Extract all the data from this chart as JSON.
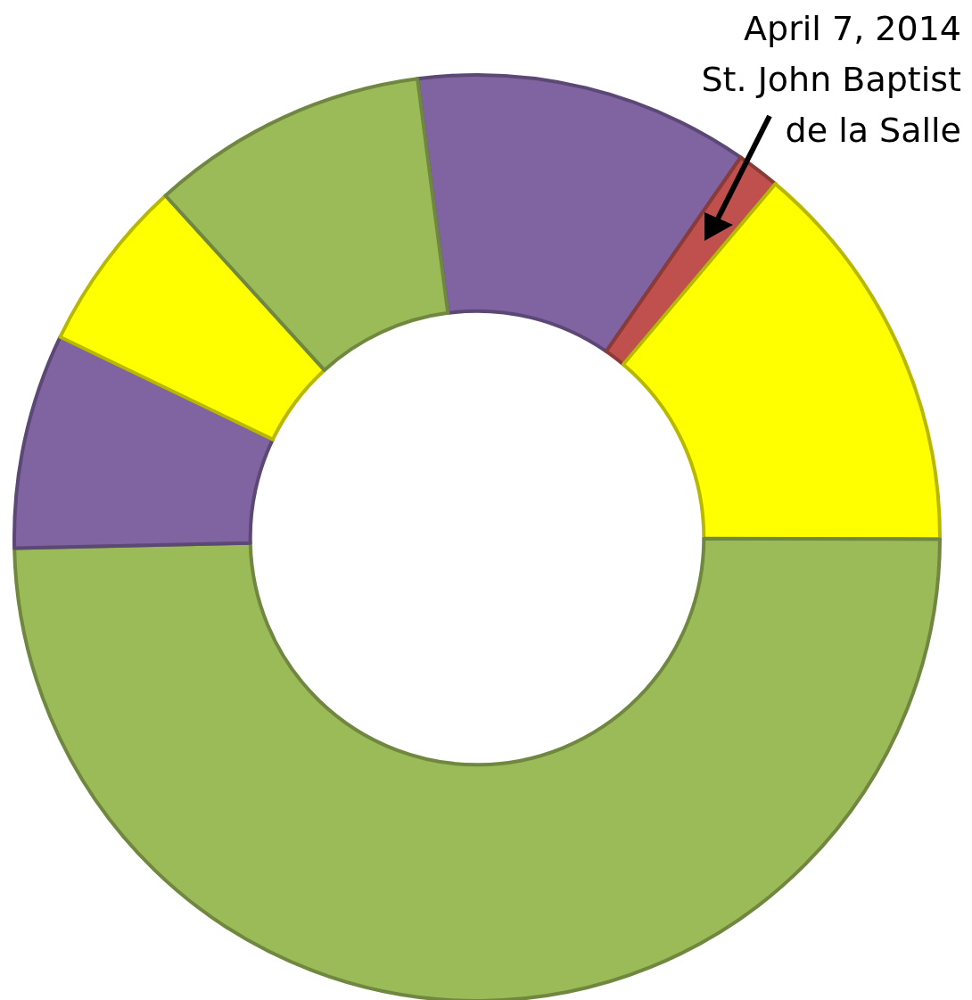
{
  "chart_data": {
    "type": "donut",
    "categories": [
      null,
      null,
      null,
      null,
      null,
      null,
      null
    ],
    "values": [
      11.7,
      1.5,
      13.9,
      49.6,
      7.5,
      6.1,
      9.7
    ],
    "colors": [
      "#8064a2",
      "#c0504d",
      "#ffff00",
      "#9bbb59",
      "#8064a2",
      "#ffff00",
      "#9bbb59"
    ],
    "annotations": [
      "April 7, 2014\nSt. John Baptist\nde la Salle"
    ],
    "legend": false
  }
}
